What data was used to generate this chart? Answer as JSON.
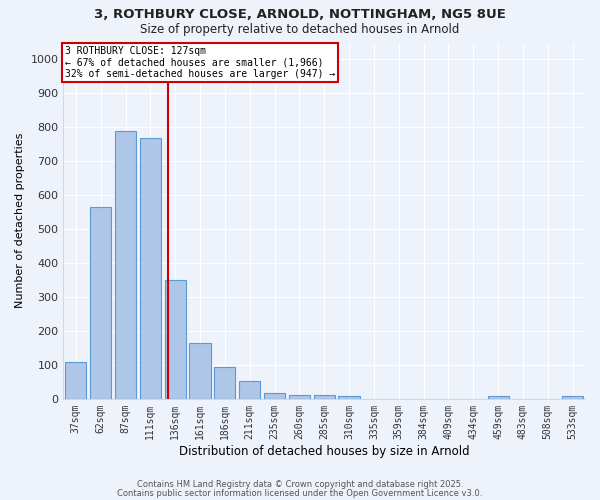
{
  "title_line1": "3, ROTHBURY CLOSE, ARNOLD, NOTTINGHAM, NG5 8UE",
  "title_line2": "Size of property relative to detached houses in Arnold",
  "xlabel": "Distribution of detached houses by size in Arnold",
  "ylabel": "Number of detached properties",
  "categories": [
    "37sqm",
    "62sqm",
    "87sqm",
    "111sqm",
    "136sqm",
    "161sqm",
    "186sqm",
    "211sqm",
    "235sqm",
    "260sqm",
    "285sqm",
    "310sqm",
    "335sqm",
    "359sqm",
    "384sqm",
    "409sqm",
    "434sqm",
    "459sqm",
    "483sqm",
    "508sqm",
    "533sqm"
  ],
  "values": [
    110,
    565,
    790,
    770,
    350,
    165,
    95,
    52,
    17,
    12,
    12,
    8,
    0,
    0,
    0,
    0,
    0,
    8,
    0,
    0,
    8
  ],
  "bar_color": "#aec6e8",
  "bar_edge_color": "#5b9bd5",
  "red_line_color": "#cc0000",
  "red_line_x": 3.7,
  "annotation_text": "3 ROTHBURY CLOSE: 127sqm\n← 67% of detached houses are smaller (1,966)\n32% of semi-detached houses are larger (947) →",
  "annotation_box_color": "#ffffff",
  "annotation_box_edge_color": "#cc0000",
  "ylim": [
    0,
    1050
  ],
  "yticks": [
    0,
    100,
    200,
    300,
    400,
    500,
    600,
    700,
    800,
    900,
    1000
  ],
  "background_color": "#eef2fb",
  "grid_color": "#ffffff",
  "footer_line1": "Contains HM Land Registry data © Crown copyright and database right 2025.",
  "footer_line2": "Contains public sector information licensed under the Open Government Licence v3.0."
}
